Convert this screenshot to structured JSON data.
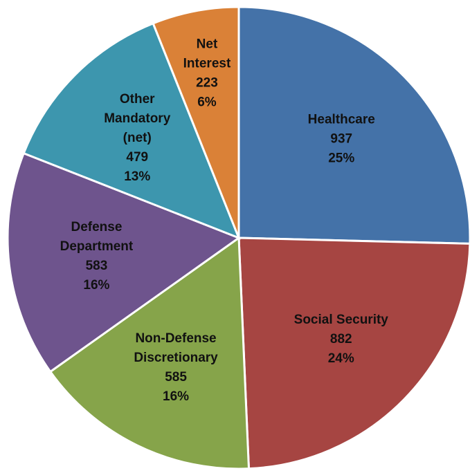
{
  "chart_data": {
    "type": "pie",
    "title": "",
    "units": "",
    "slices": [
      {
        "name": "Healthcare",
        "label_lines": [
          "Healthcare"
        ],
        "value": 937,
        "percent_label": "25%",
        "color": "#4472A8"
      },
      {
        "name": "Social Security",
        "label_lines": [
          "Social Security"
        ],
        "value": 882,
        "percent_label": "24%",
        "color": "#A64542"
      },
      {
        "name": "Non-Defense Discretionary",
        "label_lines": [
          "Non-Defense",
          "Discretionary"
        ],
        "value": 585,
        "percent_label": "16%",
        "color": "#86A44A"
      },
      {
        "name": "Defense Department",
        "label_lines": [
          "Defense",
          "Department"
        ],
        "value": 583,
        "percent_label": "16%",
        "color": "#6E548D"
      },
      {
        "name": "Other Mandatory (net)",
        "label_lines": [
          "Other",
          "Mandatory",
          "(net)"
        ],
        "value": 479,
        "percent_label": "13%",
        "color": "#3D96AE"
      },
      {
        "name": "Net Interest",
        "label_lines": [
          "Net",
          "Interest"
        ],
        "value": 223,
        "percent_label": "6%",
        "color": "#DA8137"
      }
    ],
    "start_angle_deg": 0,
    "direction": "clockwise",
    "legend": "none",
    "data_labels": "inside"
  }
}
